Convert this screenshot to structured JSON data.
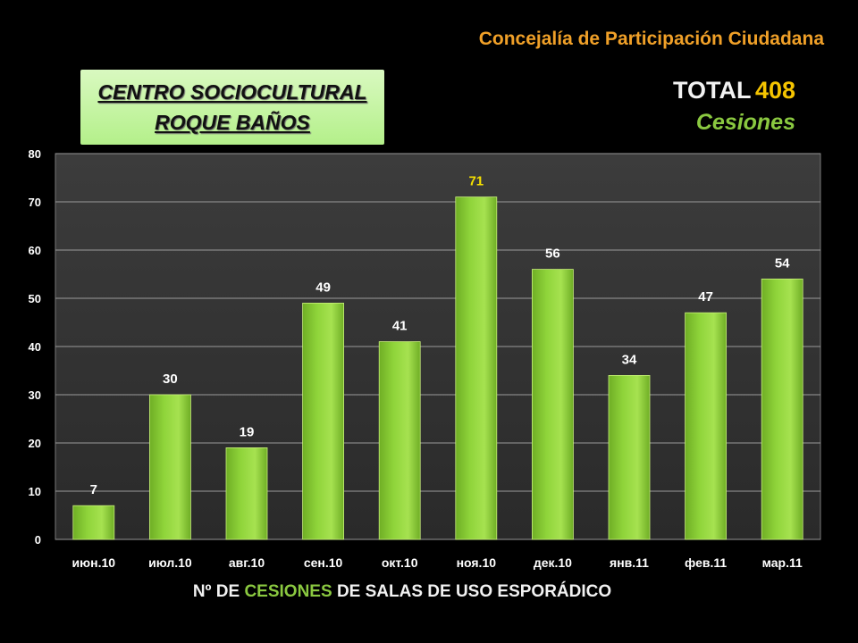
{
  "header": {
    "organization": "Concejalía de Participación Ciudadana"
  },
  "title_box": {
    "line1": "CENTRO SOCIOCULTURAL",
    "line2": "ROQUE BAÑOS"
  },
  "total": {
    "label": "TOTAL",
    "value": "408",
    "unit": "Cesiones"
  },
  "footer": {
    "part1": "Nº DE",
    "highlight": "CESIONES",
    "part2": "DE SALAS DE USO ESPORÁDICO"
  },
  "colors": {
    "bar": "#8fd43a",
    "highlight_label": "#f5e000",
    "accent_green": "#8ac840",
    "accent_orange": "#f0a028"
  },
  "chart_data": {
    "type": "bar",
    "categories": [
      "июн.10",
      "июл.10",
      "авг.10",
      "сен.10",
      "окт.10",
      "ноя.10",
      "дек.10",
      "янв.11",
      "фев.11",
      "мар.11"
    ],
    "values": [
      7,
      30,
      19,
      49,
      41,
      71,
      56,
      34,
      47,
      54
    ],
    "highlight_index": 5,
    "ylim": [
      0,
      80
    ],
    "yticks": [
      0,
      10,
      20,
      30,
      40,
      50,
      60,
      70,
      80
    ],
    "grid": true,
    "data_labels": true
  }
}
